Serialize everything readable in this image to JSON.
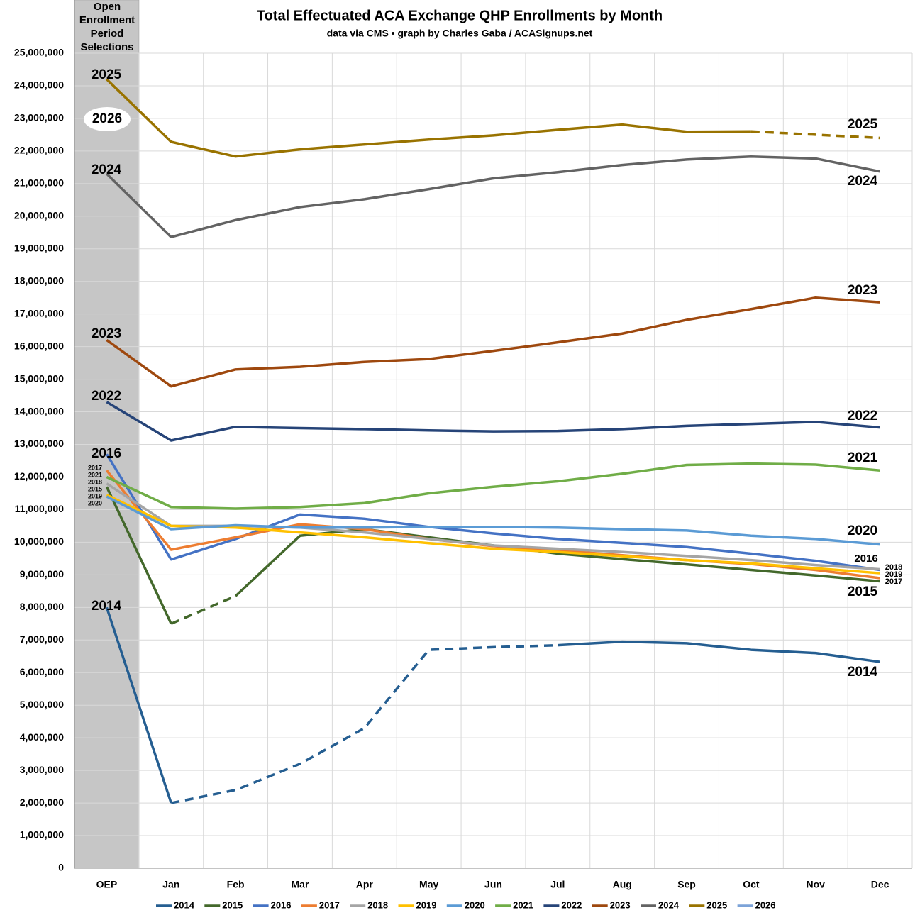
{
  "chart_data": {
    "type": "line",
    "title": "Total Effectuated ACA Exchange QHP Enrollments by Month",
    "subtitle": "data via CMS • graph by Charles Gaba / ACASignups.net",
    "band_label_lines": [
      "Open",
      "Enrollment",
      "Period",
      "Selections"
    ],
    "categories": [
      "OEP",
      "Jan",
      "Feb",
      "Mar",
      "Apr",
      "May",
      "Jun",
      "Jul",
      "Aug",
      "Sep",
      "Oct",
      "Nov",
      "Dec"
    ],
    "ylim": [
      0,
      25000000
    ],
    "yticks": [
      0,
      {
        "value": 1000000,
        "label": "1,000,000"
      },
      {
        "value": 2000000,
        "label": "2,000,000"
      },
      {
        "value": 3000000,
        "label": "3,000,000"
      },
      {
        "value": 4000000,
        "label": "4,000,000"
      },
      {
        "value": 5000000,
        "label": "5,000,000"
      },
      {
        "value": 6000000,
        "label": "6,000,000"
      },
      {
        "value": 7000000,
        "label": "7,000,000"
      },
      {
        "value": 8000000,
        "label": "8,000,000"
      },
      {
        "value": 9000000,
        "label": "9,000,000"
      },
      {
        "value": 10000000,
        "label": "10,000,000"
      },
      {
        "value": 11000000,
        "label": "11,000,000"
      },
      {
        "value": 12000000,
        "label": "12,000,000"
      },
      {
        "value": 13000000,
        "label": "13,000,000"
      },
      {
        "value": 14000000,
        "label": "14,000,000"
      },
      {
        "value": 15000000,
        "label": "15,000,000"
      },
      {
        "value": 16000000,
        "label": "16,000,000"
      },
      {
        "value": 17000000,
        "label": "17,000,000"
      },
      {
        "value": 18000000,
        "label": "18,000,000"
      },
      {
        "value": 19000000,
        "label": "19,000,000"
      },
      {
        "value": 20000000,
        "label": "20,000,000"
      },
      {
        "value": 21000000,
        "label": "21,000,000"
      },
      {
        "value": 22000000,
        "label": "22,000,000"
      },
      {
        "value": 23000000,
        "label": "23,000,000"
      },
      {
        "value": 24000000,
        "label": "24,000,000"
      },
      {
        "value": 25000000,
        "label": "25,000,000"
      }
    ],
    "grid": true,
    "legend": "bottom",
    "series": [
      {
        "name": "2014",
        "color": "#255e91",
        "dashed_between": [
          "Jan",
          "Jul"
        ],
        "values": [
          8000000,
          2000000,
          2400000,
          3200000,
          4300000,
          6700000,
          6780000,
          6840000,
          6950000,
          6900000,
          6700000,
          6600000,
          6330000
        ]
      },
      {
        "name": "2015",
        "color": "#43682b",
        "dashed_between": [
          "Jan",
          "Feb"
        ],
        "values": [
          11700000,
          7500000,
          8350000,
          10200000,
          10400000,
          10150000,
          9900000,
          9650000,
          9480000,
          9320000,
          9150000,
          8980000,
          8800000
        ]
      },
      {
        "name": "2016",
        "color": "#4472c4",
        "values": [
          12700000,
          9470000,
          10100000,
          10850000,
          10720000,
          10470000,
          10270000,
          10100000,
          9980000,
          9850000,
          9650000,
          9430000,
          9150000
        ]
      },
      {
        "name": "2017",
        "color": "#ed7d31",
        "values": [
          12200000,
          9770000,
          10150000,
          10550000,
          10400000,
          10100000,
          9880000,
          9750000,
          9600000,
          9450000,
          9330000,
          9150000,
          8900000
        ]
      },
      {
        "name": "2018",
        "color": "#a5a5a5",
        "values": [
          11800000,
          10500000,
          10500000,
          10450000,
          10300000,
          10100000,
          9900000,
          9800000,
          9700000,
          9580000,
          9450000,
          9300000,
          9170000
        ]
      },
      {
        "name": "2019",
        "color": "#ffc000",
        "values": [
          11450000,
          10500000,
          10450000,
          10300000,
          10150000,
          9970000,
          9800000,
          9700000,
          9570000,
          9450000,
          9350000,
          9200000,
          9050000
        ]
      },
      {
        "name": "2020",
        "color": "#5b9bd5",
        "values": [
          11400000,
          10400000,
          10520000,
          10450000,
          10450000,
          10470000,
          10470000,
          10450000,
          10400000,
          10360000,
          10200000,
          10100000,
          9930000
        ]
      },
      {
        "name": "2021",
        "color": "#70ad47",
        "values": [
          12000000,
          11080000,
          11030000,
          11080000,
          11200000,
          11500000,
          11700000,
          11870000,
          12100000,
          12370000,
          12410000,
          12380000,
          12200000
        ]
      },
      {
        "name": "2022",
        "color": "#264478",
        "values": [
          14300000,
          13120000,
          13540000,
          13500000,
          13470000,
          13430000,
          13400000,
          13410000,
          13470000,
          13570000,
          13630000,
          13690000,
          13520000
        ]
      },
      {
        "name": "2023",
        "color": "#9e480e",
        "values": [
          16200000,
          14780000,
          15300000,
          15380000,
          15530000,
          15620000,
          15870000,
          16130000,
          16400000,
          16820000,
          17150000,
          17500000,
          17360000
        ]
      },
      {
        "name": "2024",
        "color": "#636363",
        "values": [
          21300000,
          19360000,
          19880000,
          20280000,
          20520000,
          20830000,
          21160000,
          21350000,
          21570000,
          21740000,
          21830000,
          21770000,
          21370000
        ]
      },
      {
        "name": "2025",
        "color": "#997300",
        "dashed_between": [
          "Oct",
          "Dec"
        ],
        "values": [
          24200000,
          22280000,
          21830000,
          22050000,
          22200000,
          22350000,
          22480000,
          22650000,
          22810000,
          22590000,
          22600000,
          22500000,
          22400000
        ]
      },
      {
        "name": "2026",
        "color": "#7ca3d8",
        "values": [
          null,
          null,
          null,
          null,
          null,
          null,
          null,
          null,
          null,
          null,
          null,
          null,
          null
        ]
      }
    ]
  }
}
